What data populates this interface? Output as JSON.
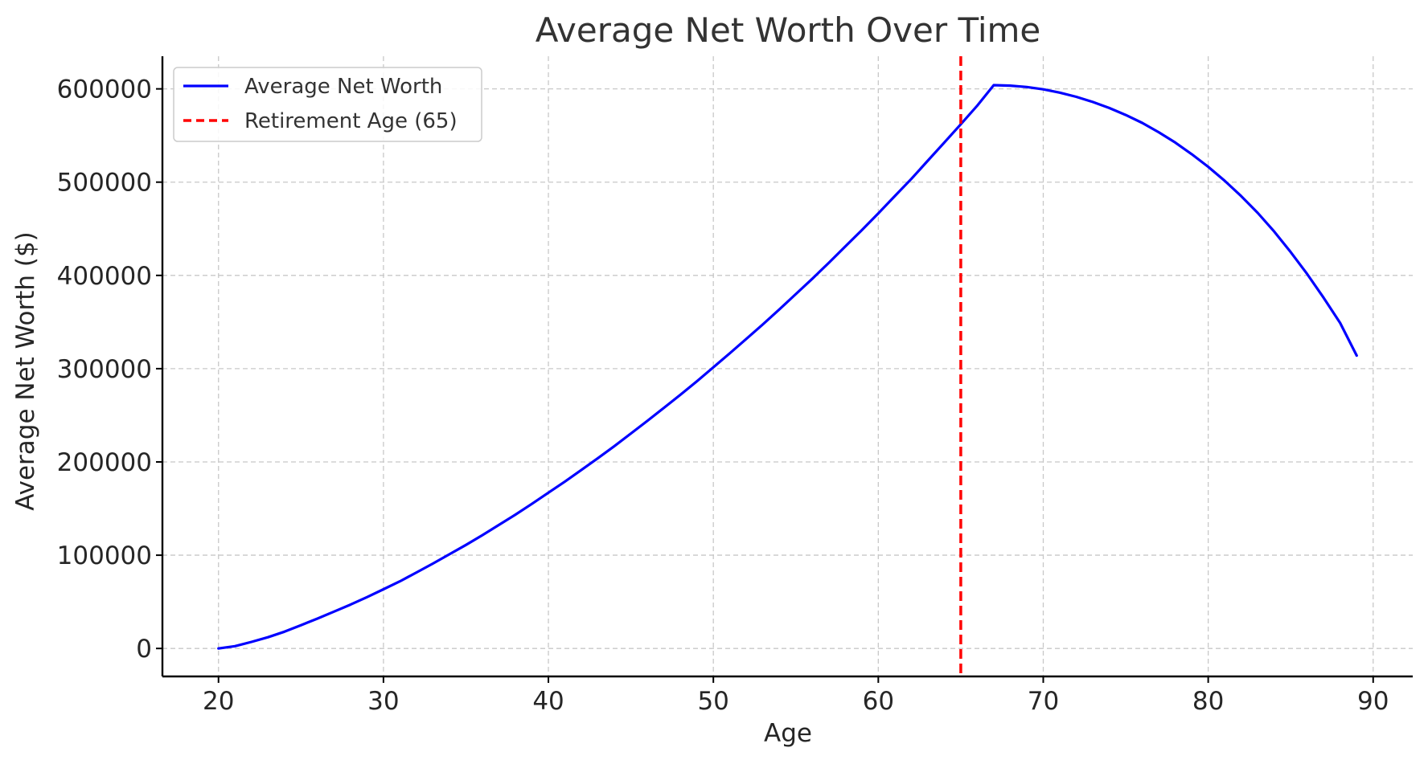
{
  "chart_data": {
    "type": "line",
    "title": "Average Net Worth Over Time",
    "xlabel": "Age",
    "ylabel": "Average Net Worth ($)",
    "xlim": [
      16.6,
      92.4
    ],
    "ylim": [
      -30000,
      635000
    ],
    "x_ticks": [
      20,
      30,
      40,
      50,
      60,
      70,
      80,
      90
    ],
    "y_ticks": [
      0,
      100000,
      200000,
      300000,
      400000,
      500000,
      600000
    ],
    "grid": true,
    "legend_position": "top-left",
    "series": [
      {
        "name": "Average Net Worth",
        "color": "#0000ff",
        "style": "solid",
        "x": [
          20,
          21,
          22,
          23,
          24,
          25,
          26,
          27,
          28,
          29,
          30,
          31,
          32,
          33,
          34,
          35,
          36,
          37,
          38,
          39,
          40,
          41,
          42,
          43,
          44,
          45,
          46,
          47,
          48,
          49,
          50,
          51,
          52,
          53,
          54,
          55,
          56,
          57,
          58,
          59,
          60,
          61,
          62,
          63,
          64,
          65,
          66,
          67,
          68,
          69,
          70,
          71,
          72,
          73,
          74,
          75,
          76,
          77,
          78,
          79,
          80,
          81,
          82,
          83,
          84,
          85,
          86,
          87,
          88,
          89
        ],
        "y": [
          0,
          2500,
          7000,
          12000,
          18000,
          25000,
          32000,
          39500,
          47000,
          55000,
          63500,
          72000,
          81500,
          91000,
          101000,
          111000,
          121500,
          132500,
          143500,
          155000,
          167000,
          179000,
          191500,
          204000,
          217000,
          230500,
          244000,
          258000,
          272000,
          286500,
          301500,
          316500,
          332000,
          347500,
          363500,
          380000,
          396500,
          413500,
          431000,
          448500,
          466500,
          485000,
          503500,
          523000,
          542500,
          562000,
          582000,
          604000,
          603500,
          602000,
          599500,
          596000,
          591500,
          586000,
          579500,
          572000,
          563500,
          553500,
          542500,
          530000,
          516500,
          501500,
          485000,
          467000,
          447000,
          425000,
          401500,
          376000,
          349000,
          314000
        ]
      }
    ],
    "vlines": [
      {
        "name": "Retirement Age (65)",
        "x": 65,
        "color": "#ff0000",
        "style": "dashed"
      }
    ]
  }
}
